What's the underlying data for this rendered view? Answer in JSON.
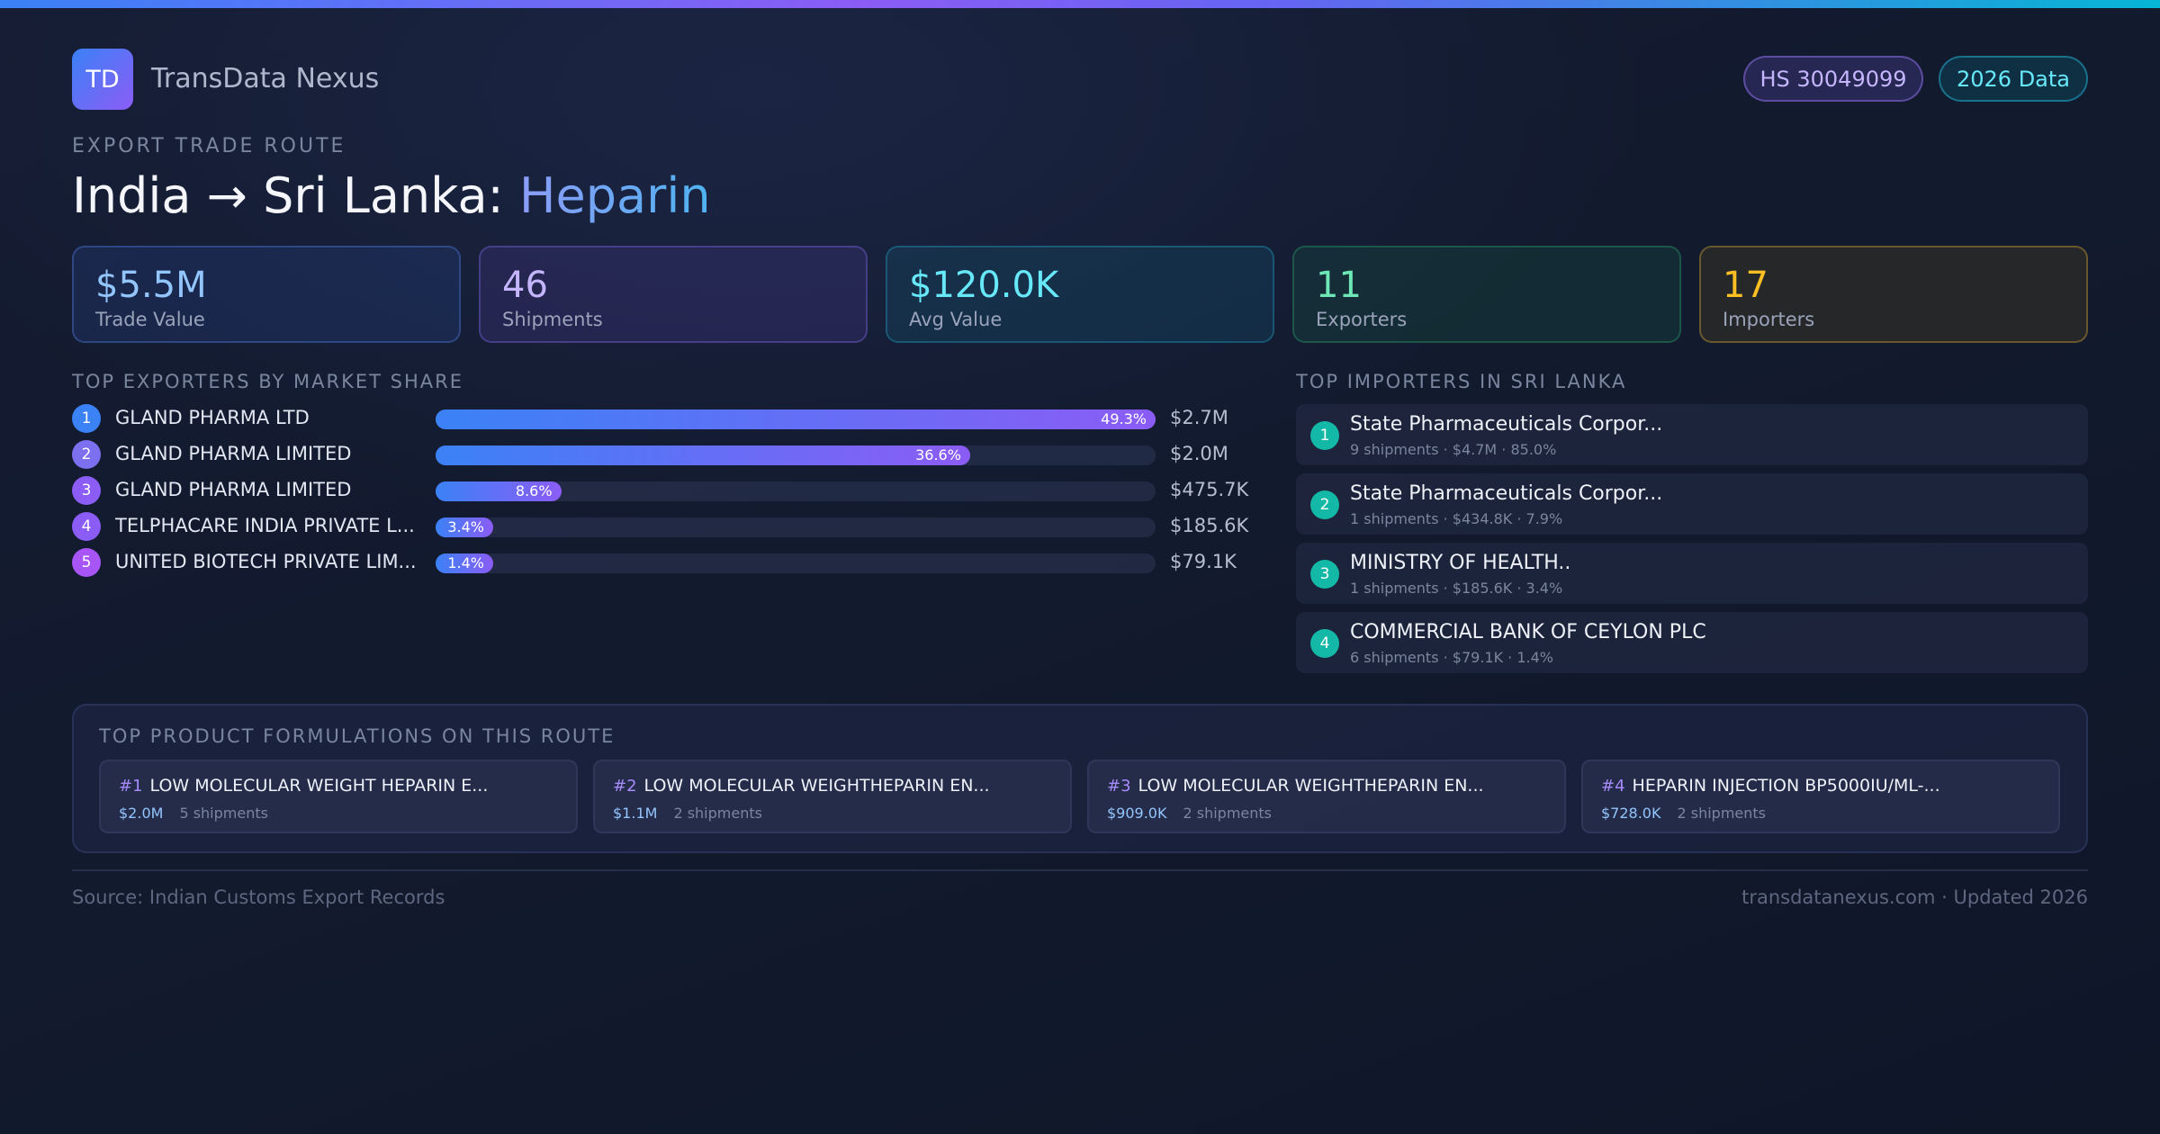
{
  "header": {
    "logo_text": "TD",
    "brand": "TransData Nexus",
    "hs_badge": "HS 30049099",
    "year_badge": "2026 Data"
  },
  "route": {
    "eyebrow": "EXPORT TRADE ROUTE",
    "title_prefix": "India → Sri Lanka: ",
    "title_product": "Heparin"
  },
  "stats": [
    {
      "value": "$5.5M",
      "label": "Trade Value"
    },
    {
      "value": "46",
      "label": "Shipments"
    },
    {
      "value": "$120.0K",
      "label": "Avg Value"
    },
    {
      "value": "11",
      "label": "Exporters"
    },
    {
      "value": "17",
      "label": "Importers"
    }
  ],
  "exporters": {
    "heading": "TOP EXPORTERS BY MARKET SHARE",
    "items": [
      {
        "rank": "1",
        "name": "GLAND PHARMA LTD",
        "share": 49.3,
        "share_label": "49.3%",
        "value": "$2.7M",
        "color": "#3b82f6"
      },
      {
        "rank": "2",
        "name": "GLAND PHARMA LIMITED",
        "share": 36.6,
        "share_label": "36.6%",
        "value": "$2.0M",
        "color": "#7c6ff0"
      },
      {
        "rank": "3",
        "name": "GLAND PHARMA LIMITED",
        "share": 8.6,
        "share_label": "8.6%",
        "value": "$475.7K",
        "color": "#8b5cf6"
      },
      {
        "rank": "4",
        "name": "TELPHACARE INDIA PRIVATE L...",
        "share": 3.4,
        "share_label": "3.4%",
        "value": "$185.6K",
        "color": "#8b5cf6"
      },
      {
        "rank": "5",
        "name": "UNITED BIOTECH PRIVATE LIM...",
        "share": 1.4,
        "share_label": "1.4%",
        "value": "$79.1K",
        "color": "#a855f7"
      }
    ]
  },
  "importers": {
    "heading": "TOP IMPORTERS IN SRI LANKA",
    "items": [
      {
        "rank": "1",
        "name": "State Pharmaceuticals Corpor...",
        "meta": "9 shipments · $4.7M · 85.0%"
      },
      {
        "rank": "2",
        "name": "State Pharmaceuticals Corpor...",
        "meta": "1 shipments · $434.8K · 7.9%"
      },
      {
        "rank": "3",
        "name": "MINISTRY OF HEALTH..",
        "meta": "1 shipments · $185.6K · 3.4%"
      },
      {
        "rank": "4",
        "name": "COMMERCIAL BANK OF CEYLON PLC",
        "meta": "6 shipments · $79.1K · 1.4%"
      }
    ]
  },
  "formulations": {
    "heading": "TOP PRODUCT FORMULATIONS ON THIS ROUTE",
    "items": [
      {
        "num": "#1",
        "name": "LOW MOLECULAR WEIGHT HEPARIN E...",
        "value": "$2.0M",
        "shipments": "5 shipments"
      },
      {
        "num": "#2",
        "name": "LOW MOLECULAR WEIGHTHEPARIN EN...",
        "value": "$1.1M",
        "shipments": "2 shipments"
      },
      {
        "num": "#3",
        "name": "LOW MOLECULAR WEIGHTHEPARIN EN...",
        "value": "$909.0K",
        "shipments": "2 shipments"
      },
      {
        "num": "#4",
        "name": "HEPARIN INJECTION BP5000IU/ML-...",
        "value": "$728.0K",
        "shipments": "2 shipments"
      }
    ]
  },
  "footer": {
    "source": "Source: Indian Customs Export Records",
    "site": "transdatanexus.com · Updated 2026"
  }
}
